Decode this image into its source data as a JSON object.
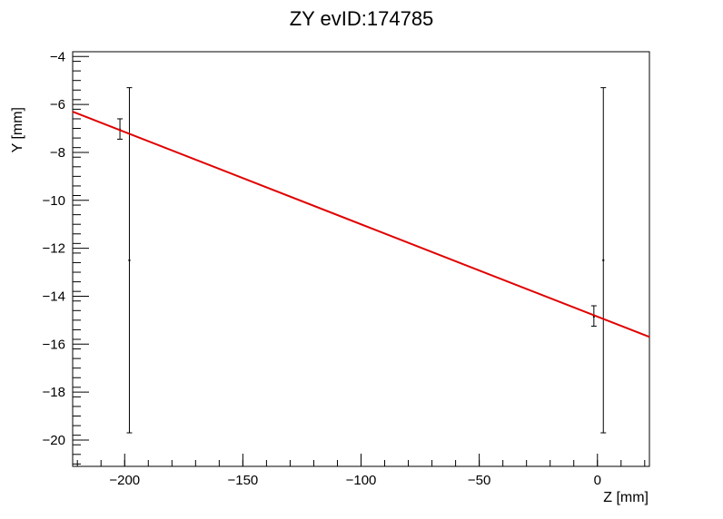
{
  "chart_data": {
    "type": "scatter",
    "title": "ZY evID:174785",
    "xlabel": "Z [mm]",
    "ylabel": "Y [mm]",
    "xlim": [
      -222,
      22
    ],
    "ylim": [
      -21.1,
      -3.8
    ],
    "xticks": [
      -200,
      -150,
      -100,
      -50,
      0
    ],
    "yticks": [
      -4,
      -6,
      -8,
      -10,
      -12,
      -14,
      -16,
      -18,
      -20
    ],
    "grid": false,
    "points": [
      {
        "x": -202,
        "y": -7.05,
        "y_low": -7.45,
        "y_high": -6.6
      },
      {
        "x": -198,
        "y": -12.5,
        "y_low": -19.7,
        "y_high": -5.3
      },
      {
        "x": -1.5,
        "y": -14.85,
        "y_low": -15.25,
        "y_high": -14.4
      },
      {
        "x": 2.5,
        "y": -12.5,
        "y_low": -19.7,
        "y_high": -5.3
      }
    ],
    "fit_line": {
      "x": [
        -222,
        22
      ],
      "y": [
        -6.3,
        -15.7
      ],
      "color": "#e00000"
    }
  }
}
